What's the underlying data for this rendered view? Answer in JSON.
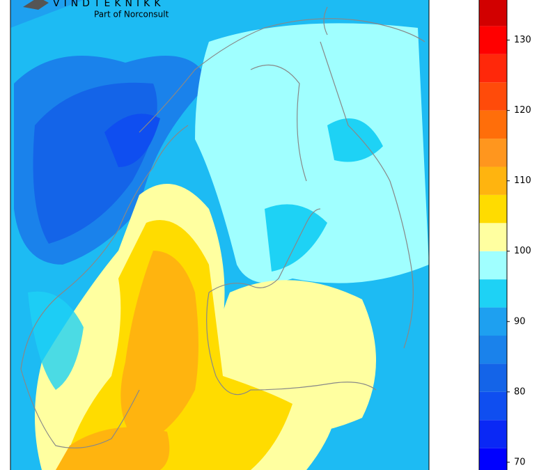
{
  "map": {
    "logo": {
      "name": "VINDTEKNIKK",
      "tagline": "Part of Norconsult"
    },
    "colorbar": {
      "levels": [
        68,
        72,
        76,
        80,
        84,
        88,
        92,
        96,
        100,
        104,
        108,
        112,
        116,
        120,
        124,
        128,
        132,
        136
      ],
      "colors": [
        "#0000ff",
        "#0a28f5",
        "#0f4ef0",
        "#1464e8",
        "#1a82eb",
        "#1ea0f0",
        "#1ed2f5",
        "#a0ffff",
        "#ffffa0",
        "#ffdc00",
        "#ffb40f",
        "#ff961e",
        "#ff6e0a",
        "#ff4b0a",
        "#ff280a",
        "#ff0000",
        "#d20000"
      ],
      "lim": [
        68.9,
        135.7
      ],
      "ticks": [
        70,
        80,
        90,
        100,
        110,
        120,
        130
      ]
    }
  }
}
